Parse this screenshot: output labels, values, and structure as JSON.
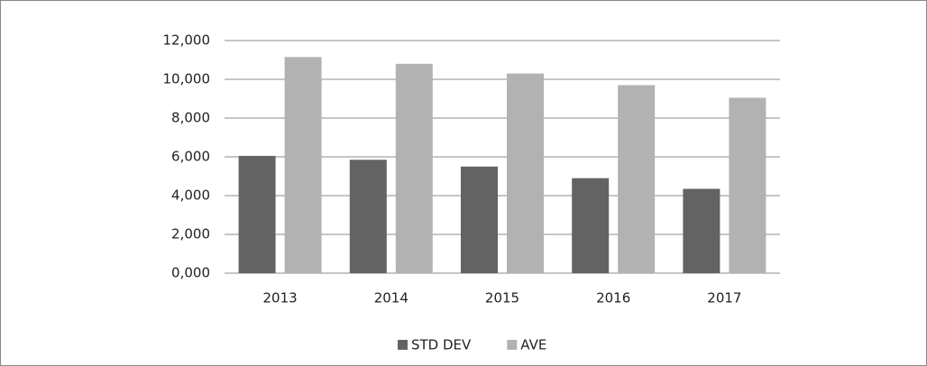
{
  "chart_data": {
    "type": "bar",
    "categories": [
      "2013",
      "2014",
      "2015",
      "2016",
      "2017"
    ],
    "series": [
      {
        "name": "STD DEV",
        "color": "#636363",
        "values": [
          6050,
          5850,
          5500,
          4900,
          4350
        ]
      },
      {
        "name": "AVE",
        "color": "#b2b2b2",
        "values": [
          11150,
          10800,
          10300,
          9700,
          9050
        ]
      }
    ],
    "ylim": [
      0,
      12000
    ],
    "yticks": [
      {
        "value": 0,
        "label": "0,000"
      },
      {
        "value": 2000,
        "label": "2,000"
      },
      {
        "value": 4000,
        "label": "4,000"
      },
      {
        "value": 6000,
        "label": "6,000"
      },
      {
        "value": 8000,
        "label": "8,000"
      },
      {
        "value": 10000,
        "label": "10,000"
      },
      {
        "value": 12000,
        "label": "12,000"
      }
    ],
    "grid": true,
    "legend": "bottom"
  }
}
